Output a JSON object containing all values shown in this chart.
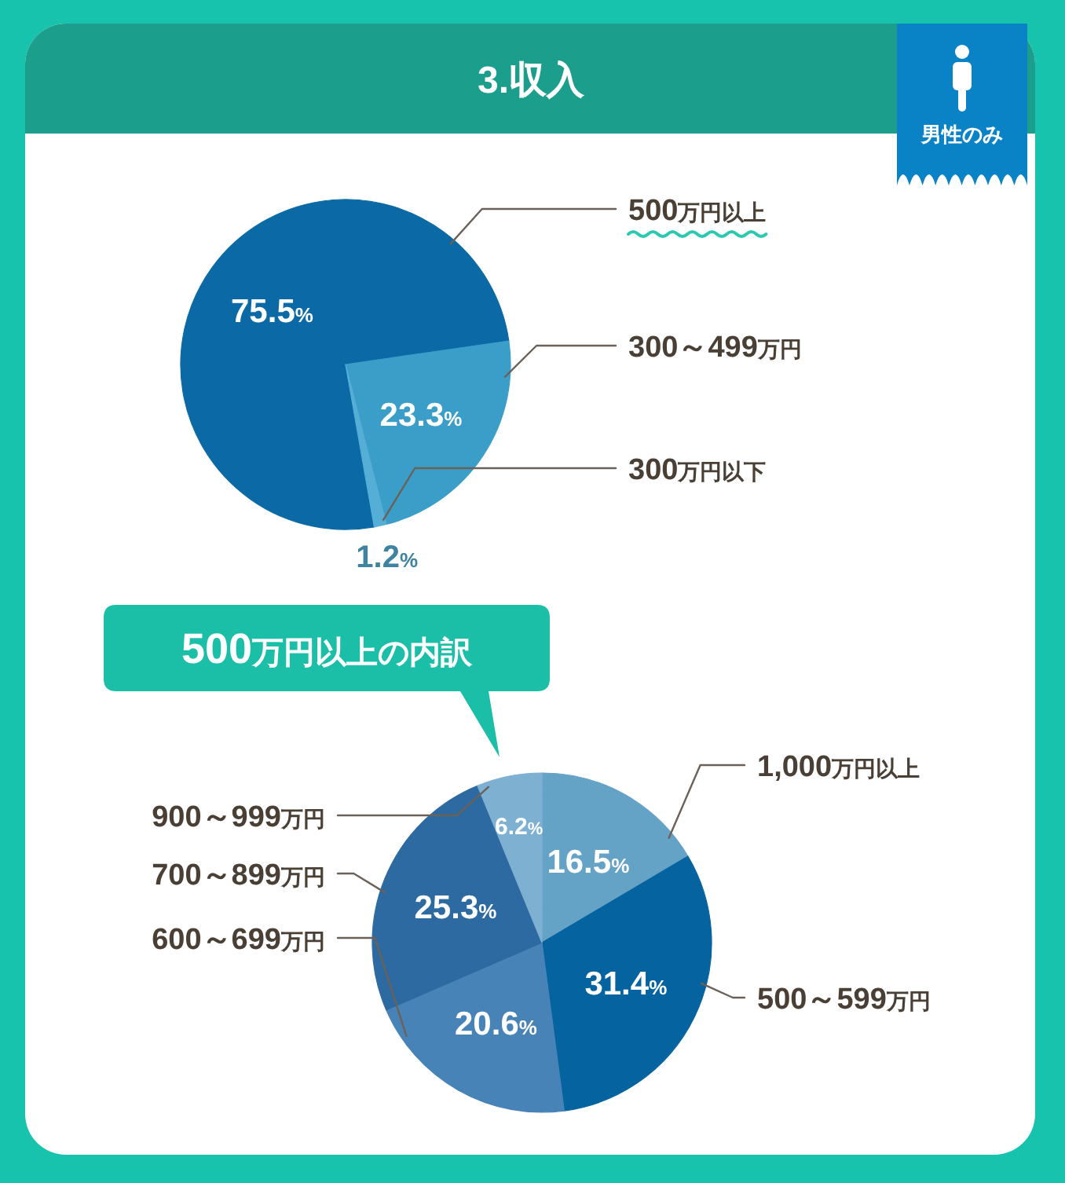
{
  "chart_data": [
    {
      "type": "pie",
      "title": "3.収入",
      "annotations": [
        "男性のみ"
      ],
      "categories": [
        "500万円以上",
        "300～499万円",
        "300万円以下"
      ],
      "values": [
        75.5,
        23.3,
        1.2
      ],
      "value_labels": [
        "75.5%",
        "23.3%",
        "1.2%"
      ],
      "colors": [
        "#0b6aa5",
        "#3a9ec9",
        "#55aed6"
      ]
    },
    {
      "type": "pie",
      "title": "500万円以上の内訳",
      "categories": [
        "1,000万円以上",
        "500～599万円",
        "600～699万円",
        "700～899万円",
        "900～999万円"
      ],
      "values": [
        16.5,
        31.4,
        20.6,
        25.3,
        6.2
      ],
      "value_labels": [
        "16.5%",
        "31.4%",
        "20.6%",
        "25.3%",
        "6.2%"
      ],
      "colors": [
        "#64a2c6",
        "#0563a0",
        "#4783b7",
        "#2d6aa1",
        "#7eb0d2"
      ]
    }
  ]
}
